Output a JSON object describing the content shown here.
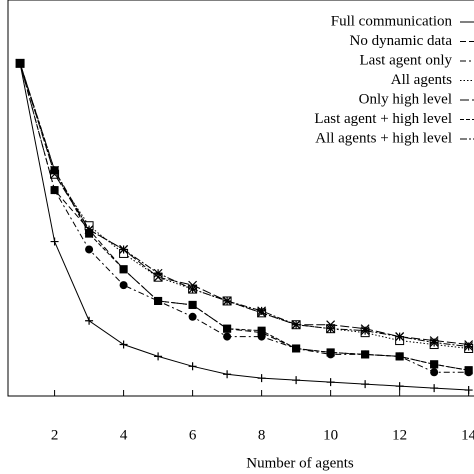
{
  "chart_data": {
    "type": "line",
    "x_label": "Number of agents",
    "x": [
      1,
      2,
      3,
      4,
      5,
      6,
      7,
      8,
      9,
      10,
      11,
      12,
      13,
      14
    ],
    "xlim": [
      0.65,
      14.3
    ],
    "xticks": [
      2,
      4,
      6,
      8,
      10,
      12,
      14
    ],
    "ylim": [
      0,
      100
    ],
    "legend": "upper right",
    "series": [
      {
        "name": "Full communication",
        "color": "#000000",
        "dash": "solid",
        "marker": "plus",
        "values": [
          84,
          39,
          19,
          13,
          10,
          7.5,
          5.5,
          4.5,
          4,
          3.5,
          3,
          2.5,
          2,
          1.5
        ]
      },
      {
        "name": "No dynamic data",
        "color": "#000000",
        "dash": "dashed",
        "marker": "square",
        "values": [
          84,
          52,
          42,
          32,
          24,
          23,
          17,
          16,
          12,
          11,
          10.5,
          10,
          8,
          6.5
        ]
      },
      {
        "name": "Last agent only",
        "color": "#000000",
        "dash": "dashdot",
        "marker": "circle",
        "values": [
          84,
          52,
          37,
          28,
          24,
          20,
          15,
          15,
          12,
          10.5,
          10.5,
          10,
          6,
          6
        ]
      },
      {
        "name": "All agents",
        "color": "#000000",
        "dash": "dotted",
        "marker": "open-square",
        "values": [
          84,
          56,
          43,
          36,
          30,
          27,
          24,
          21,
          18,
          17,
          16,
          14,
          13,
          12
        ]
      },
      {
        "name": "Only high level",
        "color": "#000000",
        "dash": "longdash",
        "marker": "x",
        "values": [
          84,
          56,
          42,
          37,
          30,
          28,
          24,
          21,
          18,
          18,
          17,
          15,
          14,
          13
        ]
      },
      {
        "name": "Last agent + high level",
        "color": "#000000",
        "dash": "shortdash",
        "marker": "square",
        "values": [
          84,
          57,
          41,
          32,
          24,
          23,
          17,
          16.5,
          12,
          11,
          10.5,
          10,
          8,
          6.5
        ]
      },
      {
        "name": "All agents + high level",
        "color": "#000000",
        "dash": "dashdot2",
        "marker": "asterisk",
        "values": [
          84,
          57,
          42,
          37,
          31,
          27,
          24,
          21.5,
          18,
          17,
          16.5,
          15,
          13.5,
          12.5
        ]
      }
    ]
  }
}
